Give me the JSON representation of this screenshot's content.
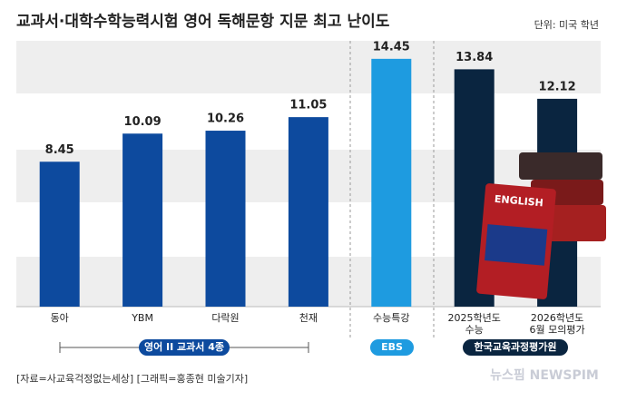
{
  "chart_data": {
    "type": "bar",
    "title": "교과서·대학수학능력시험 영어 독해문항 지문 최고 난이도",
    "unit": "단위: 미국 학년",
    "categories": [
      "동아",
      "YBM",
      "다락원",
      "천재",
      "수능특강",
      "2025학년도\n수능",
      "2026학년도\n6월 모의평가"
    ],
    "values": [
      8.45,
      10.09,
      10.26,
      11.05,
      14.45,
      13.84,
      12.12
    ],
    "colors": [
      "#0d4a9e",
      "#0d4a9e",
      "#0d4a9e",
      "#0d4a9e",
      "#1e9be0",
      "#0a2540",
      "#0a2540"
    ],
    "groups": [
      "영어 II 교과서 4종",
      "EBS",
      "한국교육과정평가원"
    ],
    "ylim": [
      0,
      15.5
    ],
    "source": "[자료=사교육걱정없는세상] [그래픽=홍종현 미술기자]",
    "watermark": "뉴스핌 NEWSPIM"
  }
}
